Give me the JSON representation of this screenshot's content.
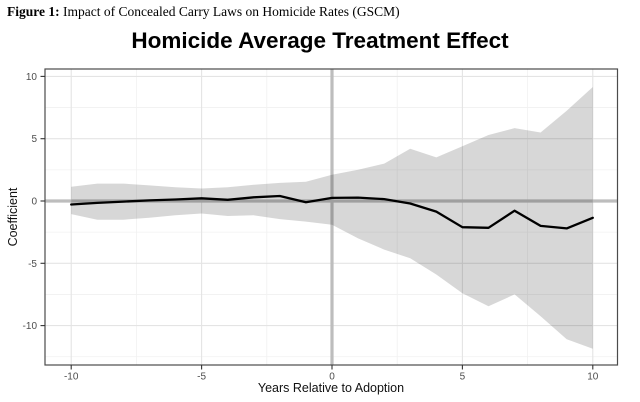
{
  "figure_caption": {
    "prefix": "Figure 1:",
    "text": " Impact of Concealed Carry Laws on Homicide Rates (GSCM)"
  },
  "chart_data": {
    "type": "line",
    "title": "Homicide Average Treatment Effect",
    "xlabel": "Years Relative to Adoption",
    "ylabel": "Coefficient",
    "x": [
      -10,
      -9,
      -8,
      -7,
      -6,
      -5,
      -4,
      -3,
      -2,
      -1,
      0,
      1,
      2,
      3,
      4,
      5,
      6,
      7,
      8,
      9,
      10
    ],
    "series": [
      {
        "name": "coefficient-line",
        "values": [
          -0.28,
          -0.15,
          -0.05,
          0.05,
          0.12,
          0.22,
          0.1,
          0.3,
          0.4,
          -0.1,
          0.25,
          0.27,
          0.15,
          -0.2,
          -0.85,
          -2.1,
          -2.15,
          -0.78,
          -2.0,
          -2.2,
          -1.35
        ]
      }
    ],
    "band": {
      "upper": [
        1.15,
        1.4,
        1.4,
        1.25,
        1.1,
        1.0,
        1.1,
        1.3,
        1.45,
        1.55,
        2.1,
        2.5,
        3.0,
        4.2,
        3.5,
        4.4,
        5.3,
        5.85,
        5.5,
        7.25,
        9.15
      ],
      "lower": [
        -1.05,
        -1.5,
        -1.5,
        -1.35,
        -1.15,
        -1.0,
        -1.2,
        -1.15,
        -1.45,
        -1.65,
        -1.9,
        -3.0,
        -3.9,
        -4.6,
        -5.9,
        -7.4,
        -8.45,
        -7.5,
        -9.25,
        -11.1,
        -11.85
      ]
    },
    "xticks": [
      -10,
      -5,
      0,
      5,
      10
    ],
    "yticks": [
      -10,
      -5,
      0,
      5,
      10
    ],
    "xminor": [
      -7.5,
      -2.5,
      2.5,
      7.5
    ],
    "yminor": [
      -12.5,
      -7.5,
      -2.5,
      2.5,
      7.5
    ],
    "xlim": [
      -11,
      11
    ],
    "ylim": [
      -13.2,
      10.6
    ],
    "reference_lines": {
      "h": 0,
      "v": 0
    },
    "legend": "none",
    "grid": "major+minor",
    "colors": {
      "line": "#000000",
      "band_fill": "rgba(0,0,0,0.155)",
      "reference": "#bdbdbd",
      "grid_major": "#e4e4e4",
      "grid_minor": "#f1f1f1",
      "panel_border": "#4b4b4b",
      "tick_text": "#4d4d4d",
      "tick_mark": "#333333"
    }
  }
}
